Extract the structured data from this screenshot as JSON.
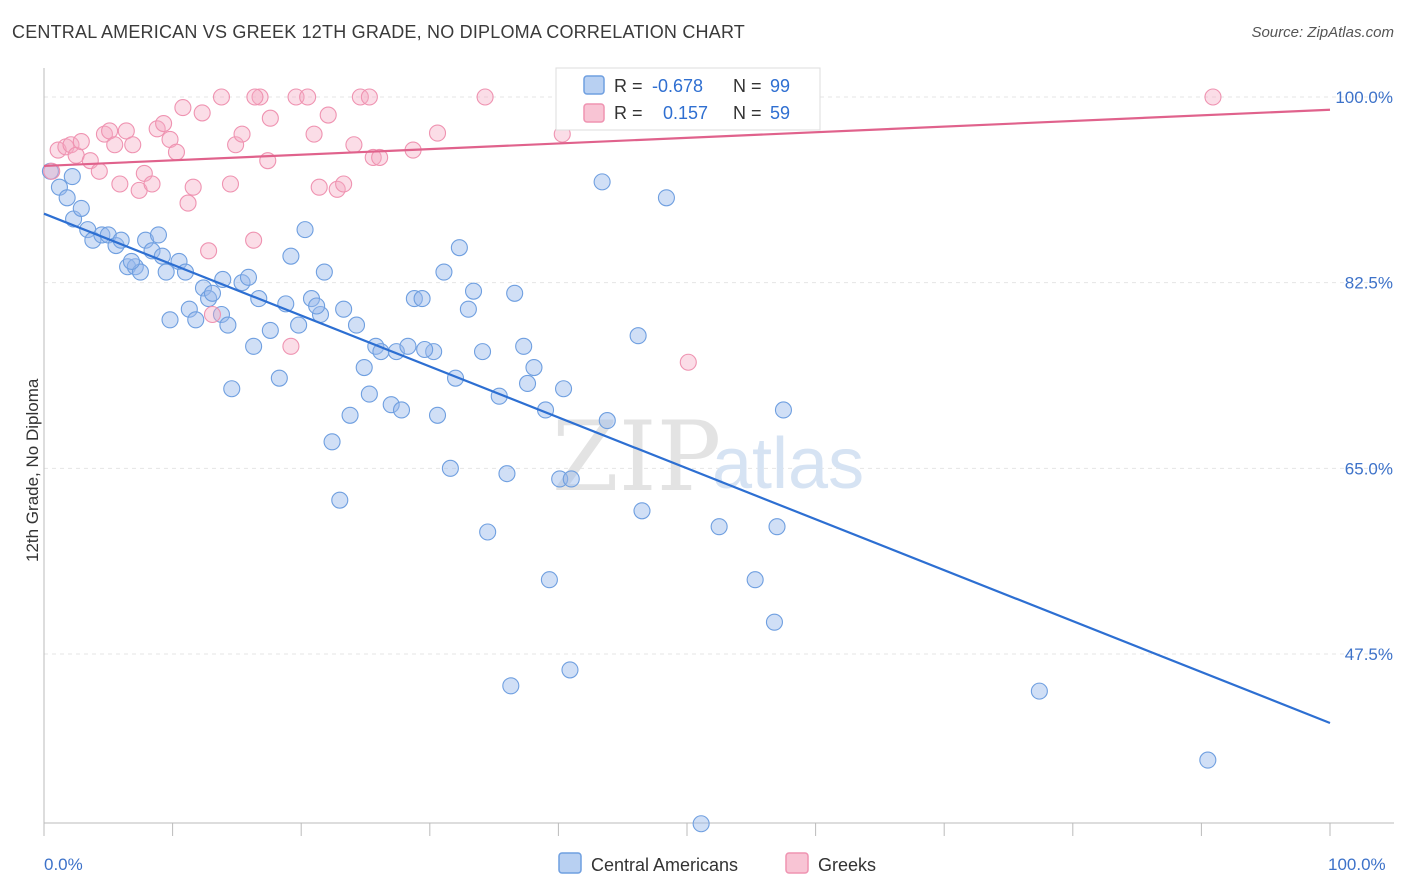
{
  "title": "CENTRAL AMERICAN VS GREEK 12TH GRADE, NO DIPLOMA CORRELATION CHART",
  "source": "Source: ZipAtlas.com",
  "watermark": {
    "zip": "ZIP",
    "atlas": "atlas"
  },
  "colors": {
    "blue": "#6f9fe0",
    "blue_line": "#2d6fd2",
    "pink": "#ef93b1",
    "pink_line": "#e0628c",
    "grid": "#e5e5e5"
  },
  "legend_top": {
    "rows": [
      {
        "r_label": "R = ",
        "r_value": "-0.678",
        "n_label": "N = ",
        "n_value": "99"
      },
      {
        "r_label": "R = ",
        "r_value": "0.157",
        "n_label": "N = ",
        "n_value": "59"
      }
    ]
  },
  "chart_data": {
    "type": "scatter",
    "title": "CENTRAL AMERICAN VS GREEK 12TH GRADE, NO DIPLOMA CORRELATION CHART",
    "xlabel": "",
    "ylabel": "12th Grade, No Diploma",
    "xlim": [
      0,
      100
    ],
    "ylim": [
      31,
      101
    ],
    "y_ticks": [
      47.5,
      65.0,
      82.5,
      100.0
    ],
    "y_tick_labels": [
      "47.5%",
      "65.0%",
      "82.5%",
      "100.0%"
    ],
    "x_tick_labels": [
      "0.0%",
      "100.0%"
    ],
    "grid": true,
    "legend_position": "bottom-center",
    "series": [
      {
        "name": "Central Americans",
        "r": -0.678,
        "n": 99,
        "trend": {
          "x0": 0,
          "y0": 89.0,
          "x1": 100,
          "y1": 41.0
        },
        "points": [
          [
            0.5,
            93
          ],
          [
            1.2,
            91.5
          ],
          [
            1.8,
            90.5
          ],
          [
            2.3,
            88.5
          ],
          [
            2.9,
            89.5
          ],
          [
            3.4,
            87.5
          ],
          [
            3.8,
            86.5
          ],
          [
            4.5,
            87
          ],
          [
            5,
            87
          ],
          [
            5.6,
            86
          ],
          [
            6,
            86.5
          ],
          [
            6.5,
            84
          ],
          [
            7.1,
            84
          ],
          [
            7.5,
            83.5
          ],
          [
            7.9,
            86.5
          ],
          [
            8.4,
            85.5
          ],
          [
            8.9,
            87
          ],
          [
            9.5,
            83.5
          ],
          [
            9.8,
            79
          ],
          [
            10.5,
            84.5
          ],
          [
            11,
            83.5
          ],
          [
            11.3,
            80
          ],
          [
            11.8,
            79
          ],
          [
            12.4,
            82
          ],
          [
            12.8,
            81
          ],
          [
            13.1,
            81.5
          ],
          [
            13.8,
            79.5
          ],
          [
            14.3,
            78.5
          ],
          [
            14.6,
            72.5
          ],
          [
            15.4,
            82.5
          ],
          [
            15.9,
            83
          ],
          [
            16.3,
            76.5
          ],
          [
            16.7,
            81
          ],
          [
            17.6,
            78
          ],
          [
            18.3,
            73.5
          ],
          [
            18.8,
            80.5
          ],
          [
            19.2,
            85
          ],
          [
            19.8,
            78.5
          ],
          [
            20.3,
            87.5
          ],
          [
            20.8,
            81
          ],
          [
            21.5,
            79.5
          ],
          [
            21.8,
            83.5
          ],
          [
            22.4,
            67.5
          ],
          [
            23,
            62
          ],
          [
            23.3,
            80
          ],
          [
            23.8,
            70
          ],
          [
            24.3,
            78.5
          ],
          [
            24.9,
            74.5
          ],
          [
            25.3,
            72
          ],
          [
            25.8,
            76.5
          ],
          [
            26.2,
            76
          ],
          [
            27,
            71
          ],
          [
            27.4,
            76
          ],
          [
            27.8,
            70.5
          ],
          [
            28.3,
            76.5
          ],
          [
            28.8,
            81
          ],
          [
            29.4,
            81
          ],
          [
            30.3,
            76
          ],
          [
            30.6,
            70
          ],
          [
            31.6,
            65
          ],
          [
            32,
            73.5
          ],
          [
            32.3,
            85.8
          ],
          [
            33,
            80
          ],
          [
            33.4,
            81.7
          ],
          [
            34.1,
            76
          ],
          [
            34.5,
            59
          ],
          [
            35.4,
            71.8
          ],
          [
            36,
            64.5
          ],
          [
            36.6,
            81.5
          ],
          [
            37.3,
            76.5
          ],
          [
            37.6,
            73
          ],
          [
            38.1,
            74.5
          ],
          [
            39,
            70.5
          ],
          [
            39.3,
            54.5
          ],
          [
            40.1,
            64
          ],
          [
            40.4,
            72.5
          ],
          [
            41,
            64
          ],
          [
            43.8,
            69.5
          ],
          [
            43.4,
            92
          ],
          [
            46.2,
            77.5
          ],
          [
            46.5,
            61
          ],
          [
            48.4,
            90.5
          ],
          [
            52.5,
            59.5
          ],
          [
            55.3,
            54.5
          ],
          [
            56.8,
            50.5
          ],
          [
            57,
            59.5
          ],
          [
            57.5,
            70.5
          ],
          [
            77.4,
            44
          ],
          [
            90.5,
            37.5
          ],
          [
            36.3,
            44.5
          ],
          [
            40.9,
            46
          ],
          [
            51.1,
            31.5
          ],
          [
            29.6,
            76.2
          ],
          [
            13.9,
            82.8
          ],
          [
            6.8,
            84.5
          ],
          [
            2.2,
            92.5
          ],
          [
            9.2,
            85
          ],
          [
            31.1,
            83.5
          ],
          [
            21.2,
            80.3
          ]
        ]
      },
      {
        "name": "Greeks",
        "r": 0.157,
        "n": 59,
        "trend": {
          "x0": 0,
          "y0": 93.5,
          "x1": 100,
          "y1": 98.8
        },
        "points": [
          [
            0.6,
            93
          ],
          [
            1.1,
            95
          ],
          [
            1.7,
            95.3
          ],
          [
            2.1,
            95.5
          ],
          [
            2.5,
            94.5
          ],
          [
            2.9,
            95.8
          ],
          [
            3.6,
            94
          ],
          [
            4.3,
            93
          ],
          [
            4.7,
            96.5
          ],
          [
            5.1,
            96.8
          ],
          [
            5.5,
            95.5
          ],
          [
            5.9,
            91.8
          ],
          [
            6.4,
            96.8
          ],
          [
            6.9,
            95.5
          ],
          [
            7.4,
            91.2
          ],
          [
            7.8,
            92.8
          ],
          [
            8.4,
            91.8
          ],
          [
            8.8,
            97
          ],
          [
            9.3,
            97.5
          ],
          [
            9.8,
            96
          ],
          [
            10.3,
            94.8
          ],
          [
            10.8,
            99
          ],
          [
            11.2,
            90
          ],
          [
            11.6,
            91.5
          ],
          [
            12.3,
            98.5
          ],
          [
            12.8,
            85.5
          ],
          [
            13.1,
            79.5
          ],
          [
            13.8,
            100
          ],
          [
            14.5,
            91.8
          ],
          [
            14.9,
            95.5
          ],
          [
            15.4,
            96.5
          ],
          [
            16.3,
            86.5
          ],
          [
            16.8,
            100
          ],
          [
            17.4,
            94
          ],
          [
            17.6,
            98
          ],
          [
            19.2,
            76.5
          ],
          [
            19.6,
            100
          ],
          [
            20.5,
            100
          ],
          [
            21,
            96.5
          ],
          [
            21.4,
            91.5
          ],
          [
            22.1,
            98.3
          ],
          [
            22.8,
            91.3
          ],
          [
            23.3,
            91.8
          ],
          [
            24.1,
            95.5
          ],
          [
            24.6,
            100
          ],
          [
            25.3,
            100
          ],
          [
            25.6,
            94.3
          ],
          [
            26.1,
            94.3
          ],
          [
            28.7,
            95
          ],
          [
            30.6,
            96.6
          ],
          [
            34.3,
            100
          ],
          [
            40.3,
            96.5
          ],
          [
            43.5,
            100
          ],
          [
            45,
            100
          ],
          [
            52,
            100
          ],
          [
            56.8,
            100
          ],
          [
            90.9,
            100
          ],
          [
            50.1,
            75
          ],
          [
            16.4,
            100
          ]
        ]
      }
    ]
  },
  "legend_bottom": [
    {
      "label": "Central Americans"
    },
    {
      "label": "Greeks"
    }
  ]
}
